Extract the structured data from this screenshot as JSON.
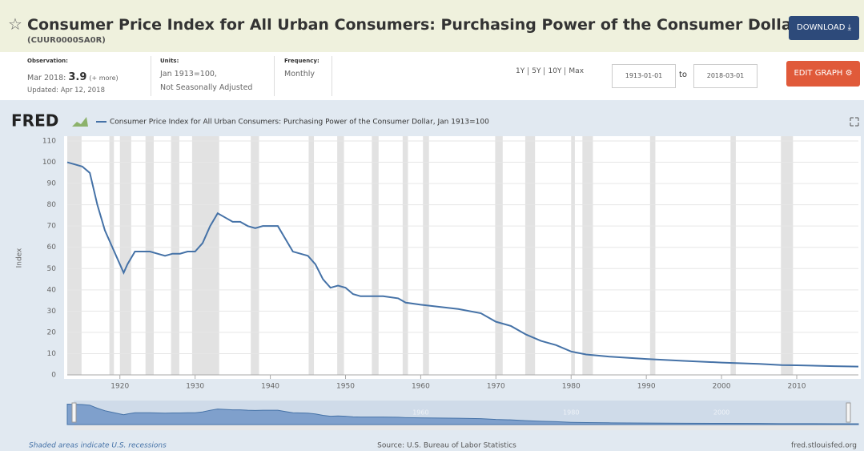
{
  "header": {
    "title": "Consumer Price Index for All Urban Consumers: Purchasing Power of the Consumer Dollar",
    "series_id": "(CUUR0000SA0R)",
    "download": "DOWNLOAD"
  },
  "meta": {
    "observation_label": "Observation:",
    "observation_date": "Mar 2018:",
    "observation_value": 3.9,
    "more": "(+ more)",
    "updated": "Updated: Apr 12, 2018",
    "units_label": "Units:",
    "units": "Jan 1913=100,",
    "units_note": "Not Seasonally Adjusted",
    "frequency_label": "Frequency:",
    "frequency": "Monthly"
  },
  "controls": {
    "ranges": [
      "1Y",
      "5Y",
      "10Y",
      "Max"
    ],
    "start": "1913-01-01",
    "to": "to",
    "end": "2018-03-01",
    "edit": "EDIT GRAPH"
  },
  "chart_data": {
    "type": "line",
    "logo": "FRED",
    "series": [
      {
        "name": "Consumer Price Index for All Urban Consumers: Purchasing Power of the Consumer Dollar, Jan 1913=100",
        "color": "#4572a7",
        "x": [
          1913,
          1914,
          1915,
          1916,
          1917,
          1918,
          1919,
          1920,
          1920.5,
          1921,
          1922,
          1923,
          1924,
          1925,
          1926,
          1927,
          1928,
          1929,
          1930,
          1931,
          1932,
          1933,
          1934,
          1935,
          1936,
          1937,
          1938,
          1939,
          1940,
          1941,
          1942,
          1943,
          1944,
          1945,
          1946,
          1947,
          1948,
          1949,
          1950,
          1951,
          1952,
          1953,
          1955,
          1957,
          1958,
          1960,
          1965,
          1968,
          1970,
          1972,
          1974,
          1976,
          1978,
          1980,
          1982,
          1985,
          1990,
          1995,
          2000,
          2005,
          2008,
          2010,
          2015,
          2018.2
        ],
        "values": [
          100,
          99,
          98,
          95,
          80,
          68,
          60,
          52,
          48,
          52,
          58,
          58,
          58,
          57,
          56,
          57,
          57,
          58,
          58,
          62,
          70,
          76,
          74,
          72,
          72,
          70,
          69,
          70,
          70,
          70,
          64,
          58,
          57,
          56,
          52,
          45,
          41,
          42,
          41,
          38,
          37,
          37,
          37,
          36,
          34,
          33,
          31,
          29,
          25,
          23,
          19,
          16,
          14,
          11,
          9.6,
          8.6,
          7.5,
          6.6,
          5.8,
          5.2,
          4.6,
          4.5,
          4.1,
          3.9
        ]
      }
    ],
    "ylabel": "Index",
    "xlim": [
      1913,
      2018.2
    ],
    "ylim": [
      0,
      110
    ],
    "yticks": [
      0,
      10,
      20,
      30,
      40,
      50,
      60,
      70,
      80,
      90,
      100,
      110
    ],
    "xticks": [
      1920,
      1930,
      1940,
      1950,
      1960,
      1970,
      1980,
      1990,
      2000,
      2010
    ],
    "grid": true,
    "recessions": [
      [
        1913.0,
        1914.9
      ],
      [
        1918.6,
        1919.2
      ],
      [
        1920.0,
        1921.5
      ],
      [
        1923.4,
        1924.5
      ],
      [
        1926.8,
        1927.9
      ],
      [
        1929.6,
        1933.2
      ],
      [
        1937.4,
        1938.5
      ],
      [
        1945.1,
        1945.8
      ],
      [
        1948.9,
        1949.8
      ],
      [
        1953.5,
        1954.4
      ],
      [
        1957.6,
        1958.3
      ],
      [
        1960.3,
        1961.1
      ],
      [
        1969.9,
        1970.9
      ],
      [
        1973.9,
        1975.2
      ],
      [
        1980.0,
        1980.5
      ],
      [
        1981.5,
        1982.9
      ],
      [
        1990.5,
        1991.2
      ],
      [
        2001.2,
        2001.9
      ],
      [
        2007.9,
        2009.5
      ]
    ],
    "navigator_ticks": [
      1960,
      1980,
      2000
    ],
    "note": "Shaded areas indicate U.S. recessions",
    "source": "Source: U.S. Bureau of Labor Statistics",
    "site": "fred.stlouisfed.org"
  }
}
